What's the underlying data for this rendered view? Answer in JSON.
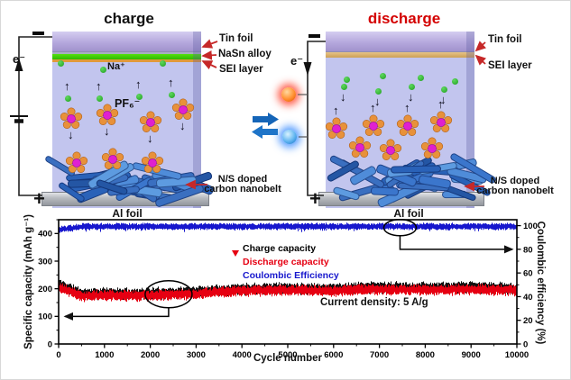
{
  "schematic": {
    "left": {
      "title": "charge",
      "plus": "+",
      "electron": "e⁻",
      "layer_labels": {
        "tin_foil": "Tin foil",
        "nasn_alloy": "NaSn alloy",
        "sei_layer": "SEI layer"
      },
      "na_ion_label": "Na⁺",
      "pf6_label": "PF₆⁻",
      "nanobelt_label_1": "N/S doped",
      "nanobelt_label_2": "carbon nanobelt",
      "al_foil_label": "Al foil"
    },
    "right": {
      "title": "discharge",
      "plus": "+",
      "electron": "e⁻",
      "layer_labels": {
        "tin_foil": "Tin foil",
        "sei_layer": "SEI layer"
      },
      "nanobelt_label_1": "N/S doped",
      "nanobelt_label_2": "carbon nanobelt",
      "al_foil_label": "Al foil"
    },
    "colors": {
      "title_charge": "#111111",
      "title_discharge": "#d40000",
      "label_arrow_red": "#c62828",
      "na_green": "#2db52d",
      "pf6_center": "#e020d0",
      "pf6_petal": "#e8913a"
    }
  },
  "chart_data": {
    "type": "line",
    "title": "",
    "xlabel": "Cycle number",
    "ylabel_left": "Specific capacity (mAh g⁻¹)",
    "ylabel_right": "Coulombic efficiency (%)",
    "xlim": [
      0,
      10000
    ],
    "ylim_left": [
      0,
      450
    ],
    "ylim_right": [
      0,
      105
    ],
    "x_ticks": [
      0,
      1000,
      2000,
      3000,
      4000,
      5000,
      6000,
      7000,
      8000,
      9000,
      10000
    ],
    "y_ticks_left": [
      0,
      100,
      200,
      300,
      400
    ],
    "y_ticks_right": [
      0,
      20,
      40,
      60,
      80,
      100
    ],
    "grid": false,
    "legend_position": "upper-middle-inside",
    "annotation": "Current density: 5 A/g",
    "legend": [
      {
        "label": "Charge capacity",
        "color": "#000000",
        "marker": "circle"
      },
      {
        "label": "Discharge capacity",
        "color": "#e60012",
        "marker": "triangle-down"
      },
      {
        "label": "Coulombic Efficiency",
        "color": "#1717cd",
        "marker": "square"
      }
    ],
    "series": [
      {
        "name": "Charge capacity",
        "axis": "left",
        "color": "#101010",
        "band_halfwidth": 16,
        "x": [
          0,
          500,
          1000,
          1500,
          2000,
          2500,
          3000,
          3500,
          4000,
          4500,
          5000,
          5500,
          6000,
          6500,
          7000,
          7500,
          8000,
          8500,
          9000,
          9500,
          10000
        ],
        "y": [
          215,
          181,
          183,
          181,
          183,
          185,
          189,
          195,
          199,
          201,
          202,
          200,
          199,
          203,
          205,
          203,
          204,
          203,
          205,
          203,
          200
        ]
      },
      {
        "name": "Discharge capacity",
        "axis": "left",
        "color": "#e60012",
        "band_halfwidth": 15,
        "x": [
          0,
          500,
          1000,
          1500,
          2000,
          2500,
          3000,
          3500,
          4000,
          4500,
          5000,
          5500,
          6000,
          6500,
          7000,
          7500,
          8000,
          8500,
          9000,
          9500,
          10000
        ],
        "y": [
          205,
          174,
          176,
          174,
          176,
          178,
          182,
          188,
          192,
          194,
          195,
          193,
          192,
          196,
          198,
          196,
          197,
          196,
          198,
          196,
          194
        ]
      },
      {
        "name": "Coulombic Efficiency",
        "axis": "right",
        "color": "#1717cd",
        "band_halfwidth": 2.2,
        "x": [
          0,
          500,
          1000,
          1500,
          2000,
          2500,
          3000,
          3500,
          4000,
          4500,
          5000,
          5500,
          6000,
          6500,
          7000,
          7500,
          8000,
          8500,
          9000,
          9500,
          10000
        ],
        "y": [
          96.5,
          99.2,
          99.3,
          99.2,
          99.3,
          99.2,
          99.3,
          99.3,
          99.2,
          99.3,
          99.3,
          99.2,
          99.3,
          99.3,
          99.2,
          99.3,
          99.3,
          99.2,
          99.3,
          99.3,
          99.2
        ]
      }
    ],
    "callouts": [
      {
        "target_series": "Discharge capacity",
        "cycle": 2400,
        "value": 180,
        "points_to_axis": "left",
        "points_to_value": 100
      },
      {
        "target_series": "Coulombic Efficiency",
        "cycle": 7450,
        "value": 98.3,
        "points_to_axis": "right",
        "points_to_value": 80
      }
    ]
  }
}
